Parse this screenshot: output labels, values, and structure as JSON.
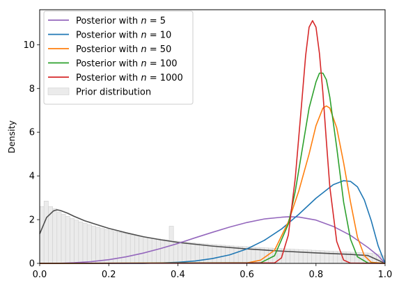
{
  "chart_data": {
    "type": "line",
    "title": "",
    "xlabel": "",
    "ylabel": "Density",
    "xlim": [
      0.0,
      1.0
    ],
    "ylim": [
      0,
      11.6
    ],
    "grid": false,
    "legend_position": "top-left",
    "x_ticks": [
      "0.0",
      "0.2",
      "0.4",
      "0.6",
      "0.8",
      "1.0"
    ],
    "y_ticks": [
      "0",
      "2",
      "4",
      "6",
      "8",
      "10"
    ],
    "x_tick_values": [
      0.0,
      0.2,
      0.4,
      0.6,
      0.8,
      1.0
    ],
    "y_tick_values": [
      0,
      2,
      4,
      6,
      8,
      10
    ],
    "series": [
      {
        "name_prefix": "Posterior with ",
        "name_var": "n",
        "name_eq": " = ",
        "name_num": "5",
        "color": "#9467bd",
        "x": [
          0.0,
          0.05,
          0.1,
          0.15,
          0.2,
          0.25,
          0.3,
          0.35,
          0.4,
          0.45,
          0.5,
          0.55,
          0.6,
          0.65,
          0.7,
          0.72,
          0.75,
          0.8,
          0.85,
          0.9,
          0.95,
          0.98,
          1.0
        ],
        "y": [
          0.0,
          0.0,
          0.03,
          0.08,
          0.17,
          0.3,
          0.47,
          0.68,
          0.91,
          1.17,
          1.42,
          1.66,
          1.87,
          2.03,
          2.11,
          2.13,
          2.12,
          1.98,
          1.69,
          1.28,
          0.73,
          0.35,
          0.0
        ]
      },
      {
        "name_prefix": "Posterior with ",
        "name_var": "n",
        "name_eq": " = ",
        "name_num": "10",
        "color": "#1f77b4",
        "x": [
          0.0,
          0.3,
          0.35,
          0.4,
          0.45,
          0.5,
          0.55,
          0.6,
          0.65,
          0.7,
          0.75,
          0.8,
          0.85,
          0.88,
          0.9,
          0.92,
          0.94,
          0.96,
          0.98,
          1.0
        ],
        "y": [
          0.0,
          0.0,
          0.02,
          0.05,
          0.11,
          0.22,
          0.39,
          0.66,
          1.05,
          1.57,
          2.24,
          2.98,
          3.6,
          3.78,
          3.75,
          3.5,
          2.9,
          1.95,
          0.8,
          0.0
        ]
      },
      {
        "name_prefix": "Posterior with ",
        "name_var": "n",
        "name_eq": " = ",
        "name_num": "50",
        "color": "#ff7f0e",
        "x": [
          0.0,
          0.6,
          0.64,
          0.68,
          0.72,
          0.75,
          0.78,
          0.8,
          0.82,
          0.83,
          0.84,
          0.86,
          0.88,
          0.9,
          0.92,
          0.94,
          0.96,
          1.0
        ],
        "y": [
          0.0,
          0.02,
          0.15,
          0.6,
          1.9,
          3.3,
          5.0,
          6.3,
          7.1,
          7.2,
          7.1,
          6.2,
          4.6,
          2.8,
          1.2,
          0.35,
          0.05,
          0.0
        ]
      },
      {
        "name_prefix": "Posterior with ",
        "name_var": "n",
        "name_eq": " = ",
        "name_num": "100",
        "color": "#2ca02c",
        "x": [
          0.0,
          0.64,
          0.68,
          0.72,
          0.74,
          0.76,
          0.78,
          0.8,
          0.81,
          0.82,
          0.83,
          0.84,
          0.86,
          0.88,
          0.9,
          0.92,
          0.95,
          1.0
        ],
        "y": [
          0.0,
          0.03,
          0.35,
          1.8,
          3.3,
          5.2,
          7.1,
          8.3,
          8.7,
          8.7,
          8.4,
          7.6,
          5.3,
          2.8,
          1.1,
          0.3,
          0.02,
          0.0
        ]
      },
      {
        "name_prefix": "Posterior with ",
        "name_var": "n",
        "name_eq": " = ",
        "name_num": "1000",
        "color": "#d62728",
        "x": [
          0.0,
          0.68,
          0.7,
          0.72,
          0.74,
          0.76,
          0.77,
          0.78,
          0.79,
          0.8,
          0.81,
          0.82,
          0.83,
          0.84,
          0.86,
          0.88,
          0.9,
          1.0
        ],
        "y": [
          0.0,
          0.02,
          0.25,
          1.3,
          3.9,
          7.6,
          9.5,
          10.8,
          11.1,
          10.8,
          9.6,
          7.8,
          5.6,
          3.5,
          1.0,
          0.15,
          0.01,
          0.0
        ]
      }
    ],
    "prior_line": {
      "color": "#4d4d4d",
      "x": [
        0.0,
        0.02,
        0.04,
        0.05,
        0.06,
        0.08,
        0.1,
        0.13,
        0.16,
        0.2,
        0.25,
        0.3,
        0.35,
        0.4,
        0.5,
        0.6,
        0.7,
        0.8,
        0.9,
        0.95,
        1.0
      ],
      "y": [
        1.35,
        2.1,
        2.4,
        2.45,
        2.42,
        2.3,
        2.15,
        1.95,
        1.8,
        1.6,
        1.4,
        1.22,
        1.08,
        0.96,
        0.79,
        0.66,
        0.56,
        0.48,
        0.41,
        0.36,
        0.0
      ]
    },
    "prior_histogram": {
      "name": "Prior distribution",
      "fill": "#ebebeb",
      "edge": "#cfcfcf",
      "bin_width": 0.0125,
      "values": [
        2.6,
        2.85,
        2.6,
        2.5,
        2.35,
        2.25,
        2.15,
        2.05,
        1.98,
        1.9,
        1.83,
        1.77,
        1.7,
        1.65,
        1.6,
        1.55,
        1.5,
        1.45,
        1.42,
        1.38,
        1.34,
        1.3,
        1.27,
        1.24,
        1.2,
        1.17,
        1.14,
        1.12,
        1.09,
        1.07,
        1.7,
        1.02,
        1.0,
        0.98,
        0.96,
        0.94,
        0.92,
        0.9,
        0.89,
        0.87,
        0.86,
        0.84,
        0.83,
        0.82,
        0.8,
        0.79,
        0.78,
        0.77,
        0.76,
        0.74,
        0.73,
        0.72,
        0.71,
        0.7,
        0.69,
        0.68,
        0.67,
        0.66,
        0.65,
        0.64,
        0.63,
        0.62,
        0.61,
        0.6,
        0.59,
        0.58,
        0.57,
        0.56,
        0.55,
        0.54,
        0.53,
        0.52,
        0.51,
        0.5,
        0.49,
        0.48,
        0.47,
        0.45,
        0.42,
        0.35
      ]
    }
  }
}
